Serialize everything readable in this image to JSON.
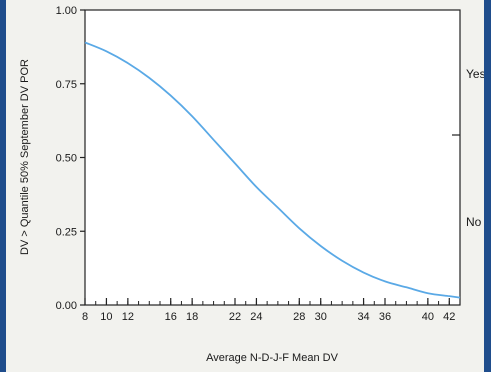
{
  "chart_data": {
    "type": "line",
    "xlabel": "Average N-D-J-F Mean DV",
    "ylabel": "DV > Quantile 50% September DV POR",
    "xlim": [
      8,
      43
    ],
    "ylim": [
      0,
      1
    ],
    "x_ticks_major": [
      8,
      10,
      12,
      16,
      18,
      22,
      24,
      28,
      30,
      34,
      36,
      40,
      42
    ],
    "x_tick_labels": [
      "8",
      "10",
      "12",
      "16",
      "18",
      "22",
      "24",
      "28",
      "30",
      "34",
      "36",
      "40",
      "42"
    ],
    "x_ticks_minor_step": 1,
    "y_ticks": [
      0,
      0.25,
      0.5,
      0.75,
      1
    ],
    "y_tick_labels": [
      "0.00",
      "0.25",
      "0.50",
      "0.75",
      "1.00"
    ],
    "right_labels": [
      "Yes",
      "No"
    ],
    "line_color": "#5aa9e6",
    "series": [
      {
        "x": [
          8,
          10,
          12,
          14,
          16,
          18,
          20,
          22,
          24,
          26,
          28,
          30,
          32,
          34,
          36,
          38,
          40,
          42,
          43
        ],
        "values": [
          0.89,
          0.86,
          0.82,
          0.77,
          0.71,
          0.64,
          0.56,
          0.48,
          0.4,
          0.33,
          0.26,
          0.2,
          0.15,
          0.11,
          0.08,
          0.06,
          0.04,
          0.03,
          0.025
        ]
      }
    ]
  }
}
